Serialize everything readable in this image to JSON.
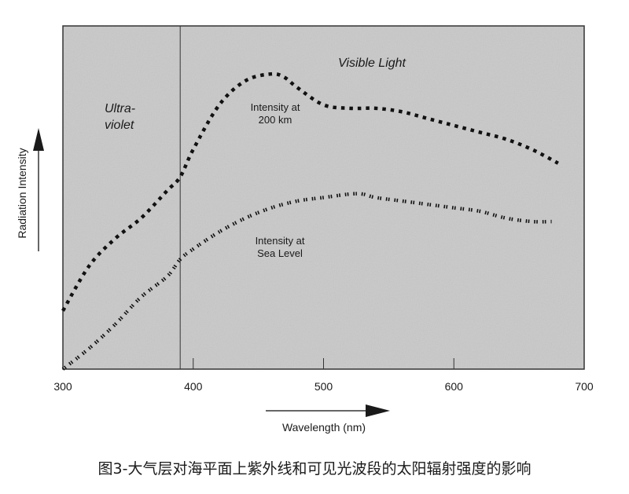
{
  "caption": "图3-大气层对海平面上紫外线和可见光波段的太阳辐射强度的影响",
  "colors": {
    "plot_background": "#c8c8c8",
    "axis": "#2a2a2a",
    "curve": "#111111",
    "page_background": "#ffffff"
  },
  "chart_data": {
    "type": "line",
    "title": "",
    "xlabel": "Wavelength (nm)",
    "ylabel": "Radiation Intensity",
    "xlim": [
      300,
      700
    ],
    "ylim": [
      0,
      100
    ],
    "x_ticks": [
      300,
      400,
      500,
      600,
      700
    ],
    "y_ticks": [],
    "grid": false,
    "legend": null,
    "region_divider_nm": 390,
    "region_labels": [
      {
        "text": "Ultra-\nviolet",
        "line1": "Ultra-",
        "line2": "violet",
        "region": "ultraviolet"
      },
      {
        "text": "Visible Light",
        "region": "visible"
      }
    ],
    "annotations": [
      {
        "line1": "Intensity at",
        "line2": "200 km",
        "series": "Intensity at 200 km"
      },
      {
        "line1": "Intensity at",
        "line2": "Sea Level",
        "series": "Intensity at Sea Level"
      }
    ],
    "x": [
      300,
      320,
      340,
      360,
      380,
      390,
      400,
      420,
      440,
      460,
      480,
      500,
      520,
      540,
      560,
      580,
      600,
      620,
      640,
      660,
      680
    ],
    "series": [
      {
        "name": "Intensity at 200 km",
        "style": "dotted-heavy",
        "x": [
          300,
          320,
          340,
          360,
          380,
          390,
          400,
          420,
          440,
          460,
          470,
          480,
          500,
          520,
          540,
          560,
          580,
          600,
          620,
          640,
          660,
          680
        ],
        "values": [
          17,
          30,
          38,
          44,
          52,
          56,
          64,
          77,
          84,
          86,
          85,
          82,
          77,
          76,
          76,
          75,
          73,
          71,
          69,
          67,
          64,
          60
        ]
      },
      {
        "name": "Intensity at Sea Level",
        "style": "dotted-double",
        "x": [
          300,
          320,
          340,
          360,
          380,
          390,
          400,
          420,
          440,
          460,
          480,
          500,
          520,
          530,
          540,
          560,
          580,
          600,
          620,
          640,
          660,
          675
        ],
        "values": [
          0,
          6,
          13,
          21,
          27,
          32,
          35,
          40,
          44,
          47,
          49,
          50,
          51,
          51,
          50,
          49,
          48,
          47,
          46,
          44,
          43,
          43
        ]
      }
    ]
  }
}
